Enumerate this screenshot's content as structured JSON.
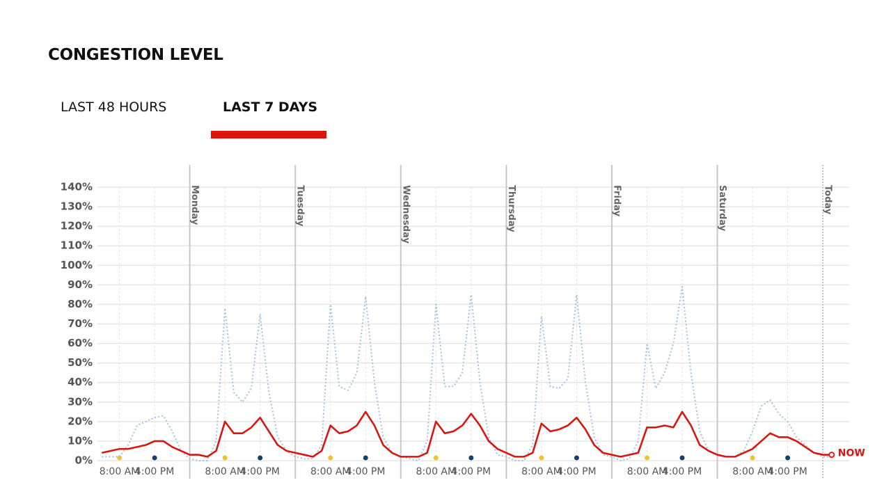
{
  "header": {
    "title": "CONGESTION LEVEL"
  },
  "tabs": [
    {
      "label": "LAST 48 HOURS",
      "active": false
    },
    {
      "label": "LAST 7 DAYS",
      "active": true
    }
  ],
  "chart_data": {
    "type": "line",
    "xlim": [
      3,
      174
    ],
    "ylim": [
      0,
      140
    ],
    "grid": true,
    "yticks": [
      {
        "value": 0,
        "label": "0%"
      },
      {
        "value": 10,
        "label": "10%"
      },
      {
        "value": 20,
        "label": "20%"
      },
      {
        "value": 30,
        "label": "30%"
      },
      {
        "value": 40,
        "label": "40%"
      },
      {
        "value": 50,
        "label": "50%"
      },
      {
        "value": 60,
        "label": "60%"
      },
      {
        "value": 70,
        "label": "70%"
      },
      {
        "value": 80,
        "label": "80%"
      },
      {
        "value": 90,
        "label": "90%"
      },
      {
        "value": 100,
        "label": "100%"
      },
      {
        "value": 110,
        "label": "110%"
      },
      {
        "value": 120,
        "label": "120%"
      },
      {
        "value": 130,
        "label": "130%"
      },
      {
        "value": 140,
        "label": "140%"
      }
    ],
    "xticks": [
      {
        "value": 8,
        "label": "8:00 AM"
      },
      {
        "value": 16,
        "label": "4:00 PM"
      },
      {
        "value": 32,
        "label": "8:00 AM"
      },
      {
        "value": 40,
        "label": "4:00 PM"
      },
      {
        "value": 56,
        "label": "8:00 AM"
      },
      {
        "value": 64,
        "label": "4:00 PM"
      },
      {
        "value": 80,
        "label": "8:00 AM"
      },
      {
        "value": 88,
        "label": "4:00 PM"
      },
      {
        "value": 104,
        "label": "8:00 AM"
      },
      {
        "value": 112,
        "label": "4:00 PM"
      },
      {
        "value": 128,
        "label": "8:00 AM"
      },
      {
        "value": 136,
        "label": "4:00 PM"
      },
      {
        "value": 152,
        "label": "8:00 AM"
      },
      {
        "value": 160,
        "label": "4:00 PM"
      }
    ],
    "tick_dot_colors": [
      "#f2c12e",
      "#123f6b"
    ],
    "days": [
      {
        "value": 24,
        "label": "Monday"
      },
      {
        "value": 48,
        "label": "Tuesday"
      },
      {
        "value": 72,
        "label": "Wednesday"
      },
      {
        "value": 96,
        "label": "Thursday"
      },
      {
        "value": 120,
        "label": "Friday"
      },
      {
        "value": 144,
        "label": "Saturday"
      },
      {
        "value": 168,
        "label": "Today"
      }
    ],
    "x": [
      4,
      6,
      8,
      10,
      12,
      14,
      16,
      18,
      20,
      22,
      24,
      26,
      28,
      30,
      32,
      34,
      36,
      38,
      40,
      42,
      44,
      46,
      48,
      50,
      52,
      54,
      56,
      58,
      60,
      62,
      64,
      66,
      68,
      70,
      72,
      74,
      76,
      78,
      80,
      82,
      84,
      86,
      88,
      90,
      92,
      94,
      96,
      98,
      100,
      102,
      104,
      106,
      108,
      110,
      112,
      114,
      116,
      118,
      120,
      122,
      124,
      126,
      128,
      130,
      132,
      134,
      136,
      138,
      140,
      142,
      144,
      146,
      148,
      150,
      152,
      154,
      156,
      158,
      160,
      162,
      164,
      166,
      168,
      170
    ],
    "series": [
      {
        "color": "#9cc3e6",
        "style": "dotted",
        "values": [
          2,
          2,
          2,
          8,
          18,
          20,
          22,
          23,
          15,
          5,
          1,
          0,
          0,
          10,
          78,
          35,
          30,
          37,
          75,
          35,
          12,
          5,
          2,
          1,
          1,
          8,
          80,
          38,
          36,
          45,
          84,
          40,
          12,
          4,
          2,
          1,
          0,
          10,
          80,
          38,
          38,
          45,
          85,
          40,
          12,
          3,
          2,
          0,
          0,
          8,
          74,
          38,
          37,
          42,
          85,
          40,
          12,
          3,
          2,
          0,
          1,
          10,
          60,
          37,
          45,
          60,
          89,
          45,
          15,
          5,
          3,
          2,
          2,
          5,
          15,
          28,
          31,
          24,
          20,
          12,
          8,
          4,
          2,
          2
        ]
      },
      {
        "color": "#d7170f",
        "style": "solid",
        "values": [
          4,
          5,
          6,
          6,
          7,
          8,
          10,
          10,
          7,
          5,
          3,
          3,
          2,
          5,
          20,
          14,
          14,
          17,
          22,
          15,
          8,
          5,
          4,
          3,
          2,
          5,
          18,
          14,
          15,
          18,
          25,
          18,
          8,
          4,
          2,
          2,
          2,
          4,
          20,
          14,
          15,
          18,
          24,
          18,
          10,
          6,
          4,
          2,
          2,
          4,
          19,
          15,
          16,
          18,
          22,
          16,
          8,
          4,
          3,
          2,
          3,
          4,
          17,
          17,
          18,
          17,
          25,
          18,
          8,
          5,
          3,
          2,
          2,
          4,
          6,
          10,
          14,
          12,
          12,
          10,
          7,
          4,
          3,
          3
        ]
      }
    ],
    "now_label": "NOW"
  }
}
